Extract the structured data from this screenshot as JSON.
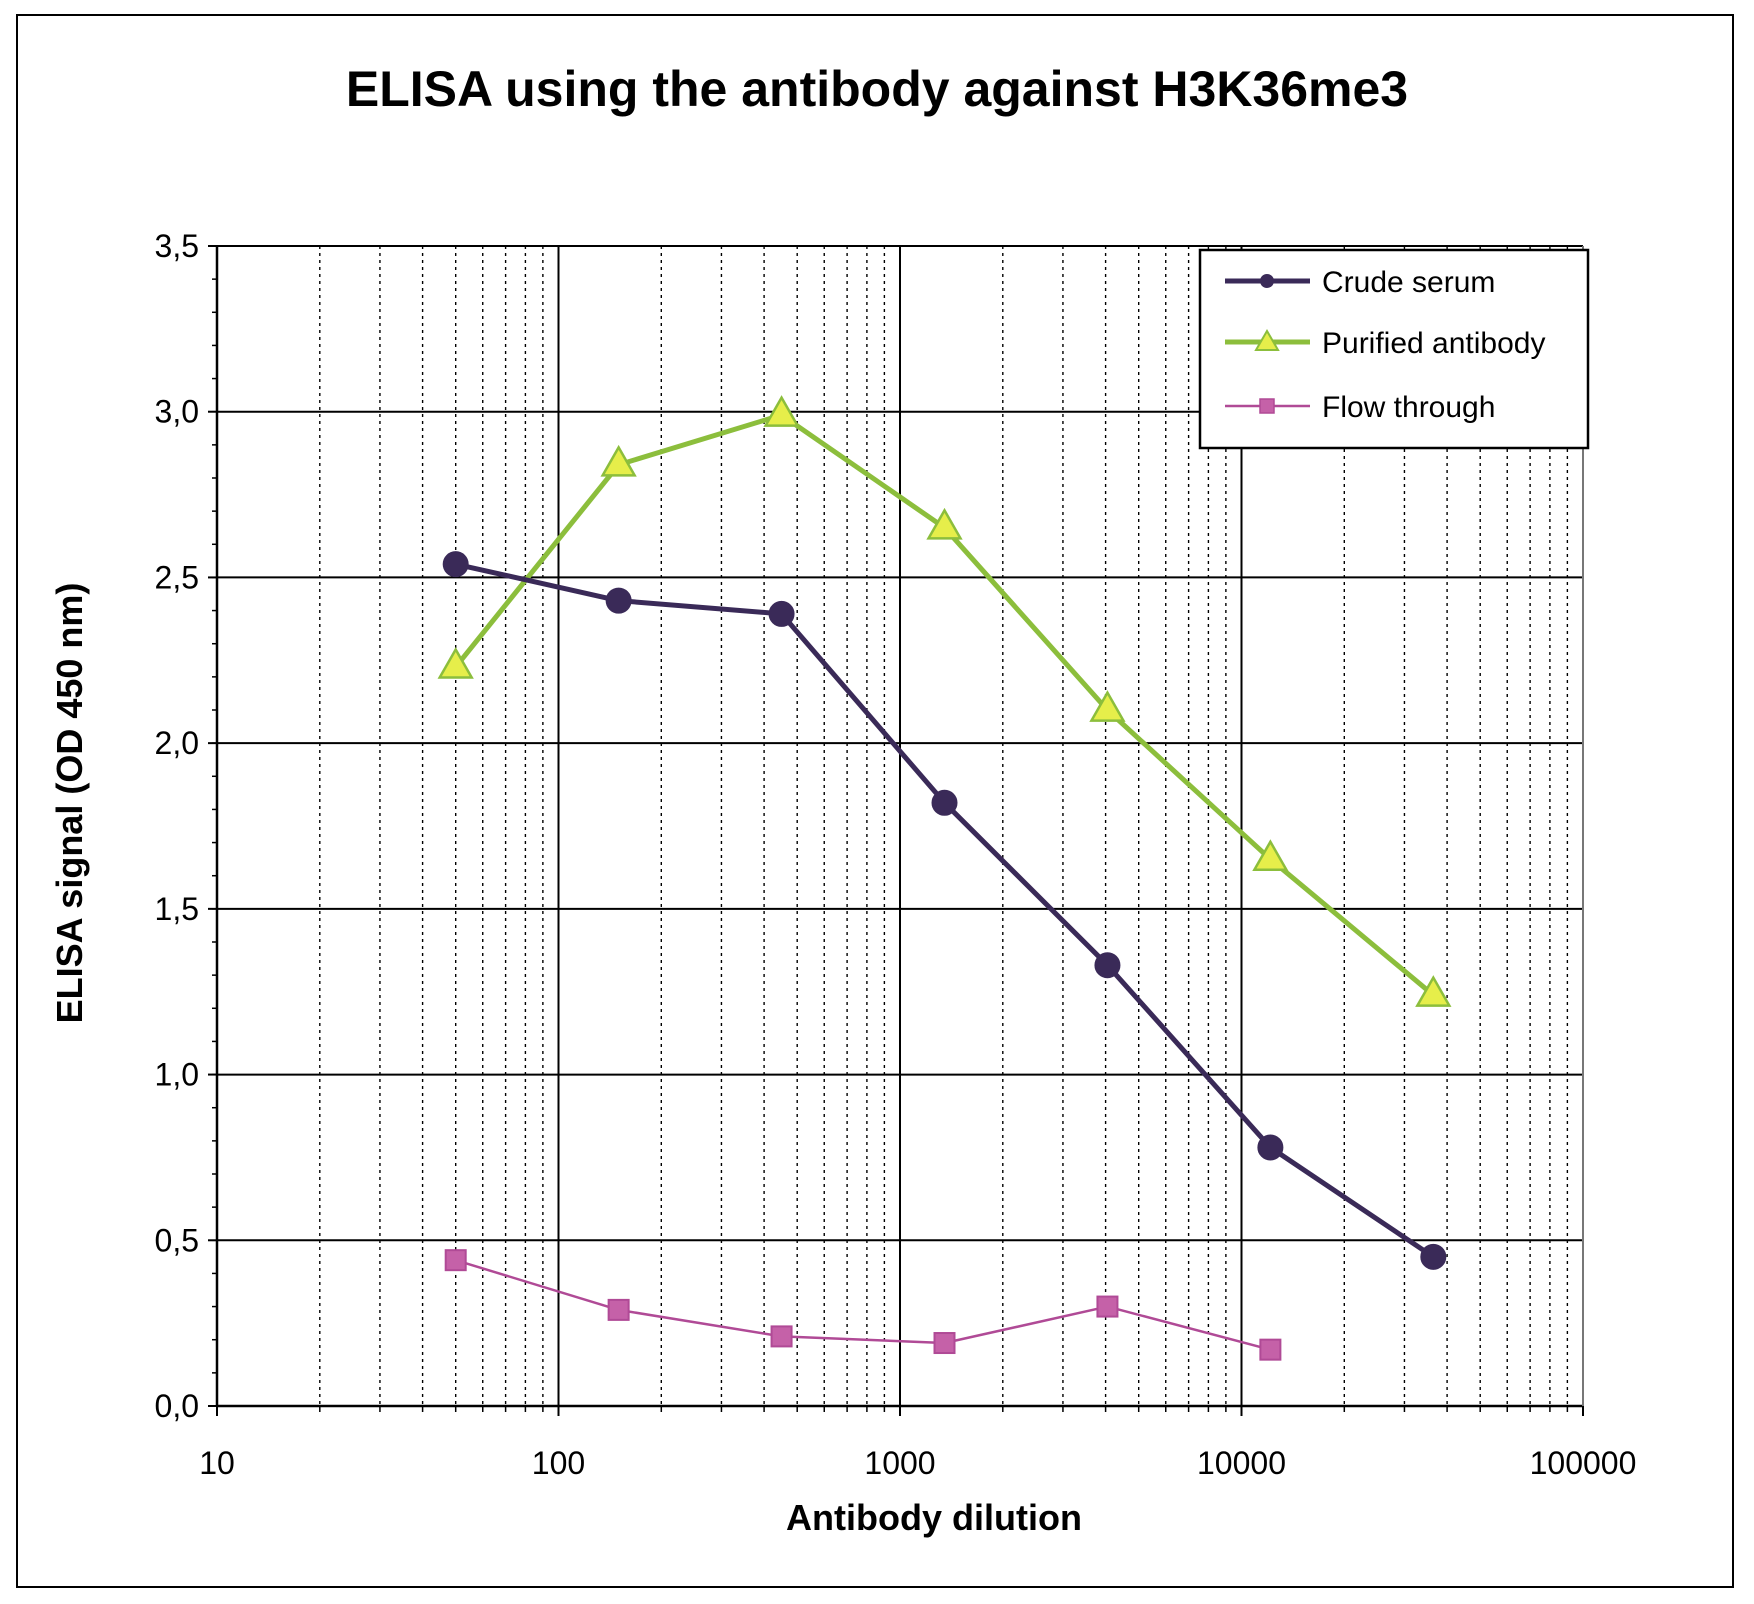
{
  "chart_data": {
    "type": "line",
    "title": "ELISA using the antibody against  H3K36me3",
    "xlabel": "Antibody dilution",
    "ylabel": "ELISA signal (OD 450 nm)",
    "xscale": "log",
    "xlim": [
      10,
      100000
    ],
    "ylim": [
      0,
      3.5
    ],
    "x_tick_labels": [
      "10",
      "100",
      "1000",
      "10000",
      "100000"
    ],
    "y_tick_labels": [
      "0,0",
      "0,5",
      "1,0",
      "1,5",
      "2,0",
      "2,5",
      "3,0",
      "3,5"
    ],
    "grid": true,
    "legend_position": "top-right",
    "series": [
      {
        "name": "Crude serum",
        "color": "#3a2a58",
        "marker": "circle",
        "x": [
          50,
          150,
          450,
          1350,
          4050,
          12150,
          36450
        ],
        "y": [
          2.54,
          2.43,
          2.39,
          1.82,
          1.33,
          0.78,
          0.45
        ]
      },
      {
        "name": "Purified antibody",
        "color": "#8cbe3c",
        "marker_fill": "#e6ee4a",
        "marker": "triangle",
        "x": [
          50,
          150,
          450,
          1350,
          4050,
          12150,
          36450
        ],
        "y": [
          2.23,
          2.84,
          2.99,
          2.65,
          2.1,
          1.65,
          1.24
        ]
      },
      {
        "name": "Flow through",
        "color": "#b04a96",
        "marker": "square",
        "x": [
          50,
          150,
          450,
          1350,
          4050,
          12150
        ],
        "y": [
          0.44,
          0.29,
          0.21,
          0.19,
          0.3,
          0.17
        ]
      }
    ]
  }
}
